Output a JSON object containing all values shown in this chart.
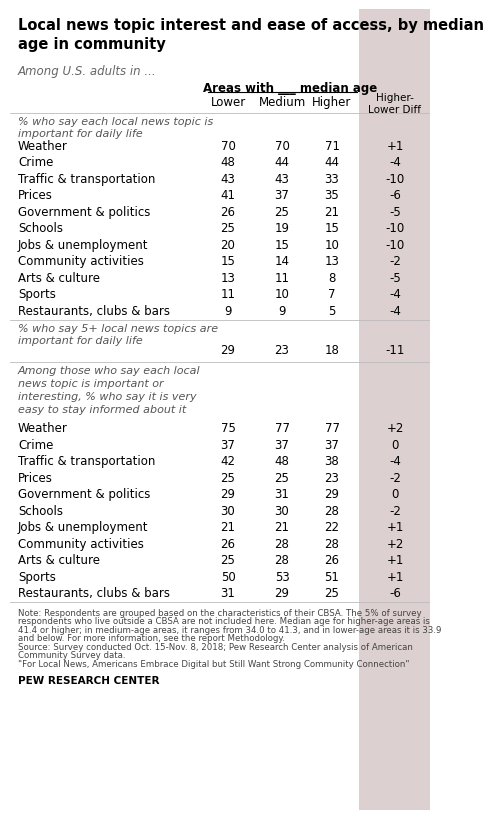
{
  "title": "Local news topic interest and ease of access, by median\nage in community",
  "subtitle": "Among U.S. adults in ...",
  "col_header_main": "Areas with ___ median age",
  "col_headers": [
    "Lower",
    "Medium",
    "Higher",
    "Higher-\nLower Diff"
  ],
  "section1_label": "% who say each local news topic is\nimportant for daily life",
  "section1_rows": [
    {
      "label": "Weather",
      "lower": "70",
      "medium": "70",
      "higher": "71",
      "diff": "+1"
    },
    {
      "label": "Crime",
      "lower": "48",
      "medium": "44",
      "higher": "44",
      "diff": "-4"
    },
    {
      "label": "Traffic & transportation",
      "lower": "43",
      "medium": "43",
      "higher": "33",
      "diff": "-10"
    },
    {
      "label": "Prices",
      "lower": "41",
      "medium": "37",
      "higher": "35",
      "diff": "-6"
    },
    {
      "label": "Government & politics",
      "lower": "26",
      "medium": "25",
      "higher": "21",
      "diff": "-5"
    },
    {
      "label": "Schools",
      "lower": "25",
      "medium": "19",
      "higher": "15",
      "diff": "-10"
    },
    {
      "label": "Jobs & unemployment",
      "lower": "20",
      "medium": "15",
      "higher": "10",
      "diff": "-10"
    },
    {
      "label": "Community activities",
      "lower": "15",
      "medium": "14",
      "higher": "13",
      "diff": "-2"
    },
    {
      "label": "Arts & culture",
      "lower": "13",
      "medium": "11",
      "higher": "8",
      "diff": "-5"
    },
    {
      "label": "Sports",
      "lower": "11",
      "medium": "10",
      "higher": "7",
      "diff": "-4"
    },
    {
      "label": "Restaurants, clubs & bars",
      "lower": "9",
      "medium": "9",
      "higher": "5",
      "diff": "-4"
    }
  ],
  "section2_label": "% who say 5+ local news topics are\nimportant for daily life",
  "section2_row": {
    "lower": "29",
    "medium": "23",
    "higher": "18",
    "diff": "-11"
  },
  "section3_label": "Among those who say each local\nnews topic is important or\ninteresting, % who say it is very\neasy to stay informed about it",
  "section3_rows": [
    {
      "label": "Weather",
      "lower": "75",
      "medium": "77",
      "higher": "77",
      "diff": "+2"
    },
    {
      "label": "Crime",
      "lower": "37",
      "medium": "37",
      "higher": "37",
      "diff": "0"
    },
    {
      "label": "Traffic & transportation",
      "lower": "42",
      "medium": "48",
      "higher": "38",
      "diff": "-4"
    },
    {
      "label": "Prices",
      "lower": "25",
      "medium": "25",
      "higher": "23",
      "diff": "-2"
    },
    {
      "label": "Government & politics",
      "lower": "29",
      "medium": "31",
      "higher": "29",
      "diff": "0"
    },
    {
      "label": "Schools",
      "lower": "30",
      "medium": "30",
      "higher": "28",
      "diff": "-2"
    },
    {
      "label": "Jobs & unemployment",
      "lower": "21",
      "medium": "21",
      "higher": "22",
      "diff": "+1"
    },
    {
      "label": "Community activities",
      "lower": "26",
      "medium": "28",
      "higher": "28",
      "diff": "+2"
    },
    {
      "label": "Arts & culture",
      "lower": "25",
      "medium": "28",
      "higher": "26",
      "diff": "+1"
    },
    {
      "label": "Sports",
      "lower": "50",
      "medium": "53",
      "higher": "51",
      "diff": "+1"
    },
    {
      "label": "Restaurants, clubs & bars",
      "lower": "31",
      "medium": "29",
      "higher": "25",
      "diff": "-6"
    }
  ],
  "note_line1": "Note: Respondents are grouped based on the characteristics of their CBSA. The 5% of survey",
  "note_line2": "respondents who live outside a CBSA are not included here. Median age for higher-age areas is",
  "note_line3": "41.4 or higher; in medium-age areas, it ranges from 34.0 to 41.3, and in lower-age areas it is 33.9",
  "note_line4": "and below. For more information, see the report Methodology.",
  "note_line5": "Source: Survey conducted Oct. 15-Nov. 8, 2018; Pew Research Center analysis of American",
  "note_line6": "Community Survey data.",
  "note_line7": "\"For Local News, Americans Embrace Digital but Still Want Strong Community Connection\"",
  "footer": "PEW RESEARCH CENTER",
  "diff_col_bg": "#ddd0d0",
  "diff_header_bg": "#c8b0b0"
}
